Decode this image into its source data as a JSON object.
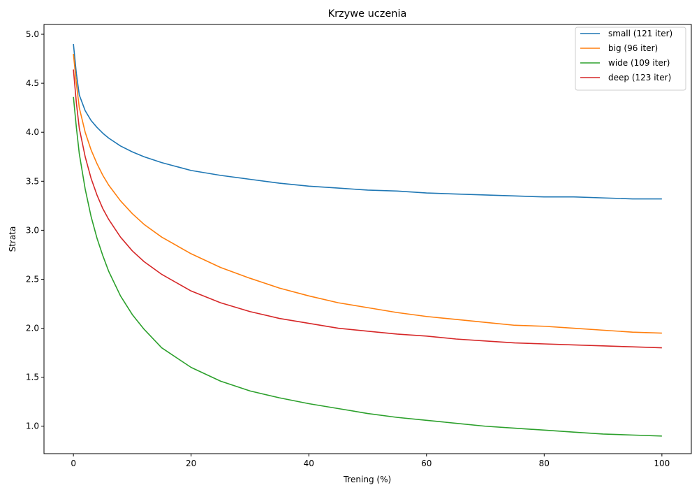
{
  "chart_data": {
    "type": "line",
    "title": "Krzywe uczenia",
    "xlabel": "Trening (%)",
    "ylabel": "Strata",
    "xlim": [
      -5,
      105
    ],
    "ylim": [
      0.72,
      5.1
    ],
    "xticks": [
      0,
      20,
      40,
      60,
      80,
      100
    ],
    "yticks": [
      1.0,
      1.5,
      2.0,
      2.5,
      3.0,
      3.5,
      4.0,
      4.5,
      5.0
    ],
    "xtick_labels": [
      "0",
      "20",
      "40",
      "60",
      "80",
      "100"
    ],
    "ytick_labels": [
      "1.0",
      "1.5",
      "2.0",
      "2.5",
      "3.0",
      "3.5",
      "4.0",
      "4.5",
      "5.0"
    ],
    "grid": false,
    "legend_position": "top-right",
    "series": [
      {
        "name": "small (121 iter)",
        "color": "#1f77b4",
        "points": [
          [
            0,
            4.9
          ],
          [
            0.5,
            4.6
          ],
          [
            1,
            4.38
          ],
          [
            2,
            4.22
          ],
          [
            3,
            4.12
          ],
          [
            4,
            4.05
          ],
          [
            5,
            3.99
          ],
          [
            6,
            3.94
          ],
          [
            8,
            3.86
          ],
          [
            10,
            3.8
          ],
          [
            12,
            3.75
          ],
          [
            15,
            3.69
          ],
          [
            20,
            3.61
          ],
          [
            25,
            3.56
          ],
          [
            30,
            3.52
          ],
          [
            35,
            3.48
          ],
          [
            40,
            3.45
          ],
          [
            45,
            3.43
          ],
          [
            50,
            3.41
          ],
          [
            55,
            3.4
          ],
          [
            60,
            3.38
          ],
          [
            65,
            3.37
          ],
          [
            70,
            3.36
          ],
          [
            75,
            3.35
          ],
          [
            80,
            3.34
          ],
          [
            85,
            3.34
          ],
          [
            90,
            3.33
          ],
          [
            95,
            3.32
          ],
          [
            100,
            3.32
          ]
        ]
      },
      {
        "name": "big (96 iter)",
        "color": "#ff7f0e",
        "points": [
          [
            0,
            4.8
          ],
          [
            0.5,
            4.5
          ],
          [
            1,
            4.25
          ],
          [
            2,
            4.0
          ],
          [
            3,
            3.82
          ],
          [
            4,
            3.68
          ],
          [
            5,
            3.56
          ],
          [
            6,
            3.46
          ],
          [
            8,
            3.3
          ],
          [
            10,
            3.17
          ],
          [
            12,
            3.06
          ],
          [
            15,
            2.93
          ],
          [
            20,
            2.76
          ],
          [
            25,
            2.62
          ],
          [
            30,
            2.51
          ],
          [
            35,
            2.41
          ],
          [
            40,
            2.33
          ],
          [
            45,
            2.26
          ],
          [
            50,
            2.21
          ],
          [
            55,
            2.16
          ],
          [
            60,
            2.12
          ],
          [
            65,
            2.09
          ],
          [
            70,
            2.06
          ],
          [
            75,
            2.03
          ],
          [
            80,
            2.02
          ],
          [
            85,
            2.0
          ],
          [
            90,
            1.98
          ],
          [
            95,
            1.96
          ],
          [
            100,
            1.95
          ]
        ]
      },
      {
        "name": "wide (109 iter)",
        "color": "#2ca02c",
        "points": [
          [
            0,
            4.36
          ],
          [
            0.5,
            4.05
          ],
          [
            1,
            3.78
          ],
          [
            2,
            3.42
          ],
          [
            3,
            3.14
          ],
          [
            4,
            2.92
          ],
          [
            5,
            2.74
          ],
          [
            6,
            2.58
          ],
          [
            8,
            2.33
          ],
          [
            10,
            2.14
          ],
          [
            12,
            1.99
          ],
          [
            15,
            1.8
          ],
          [
            20,
            1.6
          ],
          [
            25,
            1.46
          ],
          [
            30,
            1.36
          ],
          [
            35,
            1.29
          ],
          [
            40,
            1.23
          ],
          [
            45,
            1.18
          ],
          [
            50,
            1.13
          ],
          [
            55,
            1.09
          ],
          [
            60,
            1.06
          ],
          [
            65,
            1.03
          ],
          [
            70,
            1.0
          ],
          [
            75,
            0.98
          ],
          [
            80,
            0.96
          ],
          [
            85,
            0.94
          ],
          [
            90,
            0.92
          ],
          [
            95,
            0.91
          ],
          [
            100,
            0.9
          ]
        ]
      },
      {
        "name": "deep (123 iter)",
        "color": "#d62728",
        "points": [
          [
            0,
            4.64
          ],
          [
            0.5,
            4.3
          ],
          [
            1,
            4.04
          ],
          [
            2,
            3.75
          ],
          [
            3,
            3.53
          ],
          [
            4,
            3.36
          ],
          [
            5,
            3.22
          ],
          [
            6,
            3.11
          ],
          [
            8,
            2.93
          ],
          [
            10,
            2.79
          ],
          [
            12,
            2.68
          ],
          [
            15,
            2.55
          ],
          [
            20,
            2.38
          ],
          [
            25,
            2.26
          ],
          [
            30,
            2.17
          ],
          [
            35,
            2.1
          ],
          [
            40,
            2.05
          ],
          [
            45,
            2.0
          ],
          [
            50,
            1.97
          ],
          [
            55,
            1.94
          ],
          [
            60,
            1.92
          ],
          [
            65,
            1.89
          ],
          [
            70,
            1.87
          ],
          [
            75,
            1.85
          ],
          [
            80,
            1.84
          ],
          [
            85,
            1.83
          ],
          [
            90,
            1.82
          ],
          [
            95,
            1.81
          ],
          [
            100,
            1.8
          ]
        ]
      }
    ]
  }
}
